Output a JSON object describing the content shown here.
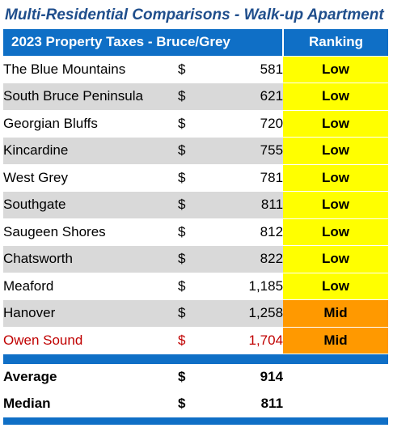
{
  "title": "Multi-Residential Comparisons - Walk-up Apartment",
  "table": {
    "header_label": "2023 Property Taxes - Bruce/Grey",
    "ranking_label": "Ranking",
    "rows": [
      {
        "name": "The Blue Mountains",
        "dollar": "$",
        "amount": "581",
        "ranking": "Low",
        "level": "low",
        "shade": false,
        "highlight": false
      },
      {
        "name": "South Bruce Peninsula",
        "dollar": "$",
        "amount": "621",
        "ranking": "Low",
        "level": "low",
        "shade": true,
        "highlight": false
      },
      {
        "name": "Georgian Bluffs",
        "dollar": "$",
        "amount": "720",
        "ranking": "Low",
        "level": "low",
        "shade": false,
        "highlight": false
      },
      {
        "name": "Kincardine",
        "dollar": "$",
        "amount": "755",
        "ranking": "Low",
        "level": "low",
        "shade": true,
        "highlight": false
      },
      {
        "name": "West Grey",
        "dollar": "$",
        "amount": "781",
        "ranking": "Low",
        "level": "low",
        "shade": false,
        "highlight": false
      },
      {
        "name": "Southgate",
        "dollar": "$",
        "amount": "811",
        "ranking": "Low",
        "level": "low",
        "shade": true,
        "highlight": false
      },
      {
        "name": "Saugeen Shores",
        "dollar": "$",
        "amount": "812",
        "ranking": "Low",
        "level": "low",
        "shade": false,
        "highlight": false
      },
      {
        "name": "Chatsworth",
        "dollar": "$",
        "amount": "822",
        "ranking": "Low",
        "level": "low",
        "shade": true,
        "highlight": false
      },
      {
        "name": "Meaford",
        "dollar": "$",
        "amount": "1,185",
        "ranking": "Low",
        "level": "low",
        "shade": false,
        "highlight": false
      },
      {
        "name": "Hanover",
        "dollar": "$",
        "amount": "1,258",
        "ranking": "Mid",
        "level": "mid",
        "shade": true,
        "highlight": false
      },
      {
        "name": "Owen Sound",
        "dollar": "$",
        "amount": "1,704",
        "ranking": "Mid",
        "level": "mid",
        "shade": false,
        "highlight": true
      }
    ],
    "summary": [
      {
        "label": "Average",
        "dollar": "$",
        "amount": "914"
      },
      {
        "label": "Median",
        "dollar": "$",
        "amount": "811"
      }
    ]
  },
  "colors": {
    "title": "#1f4e8c",
    "header": "#0f6fc6",
    "low": "#ffff00",
    "mid": "#ff9900",
    "highlight_text": "#c00000",
    "shade": "#d9d9d9"
  }
}
